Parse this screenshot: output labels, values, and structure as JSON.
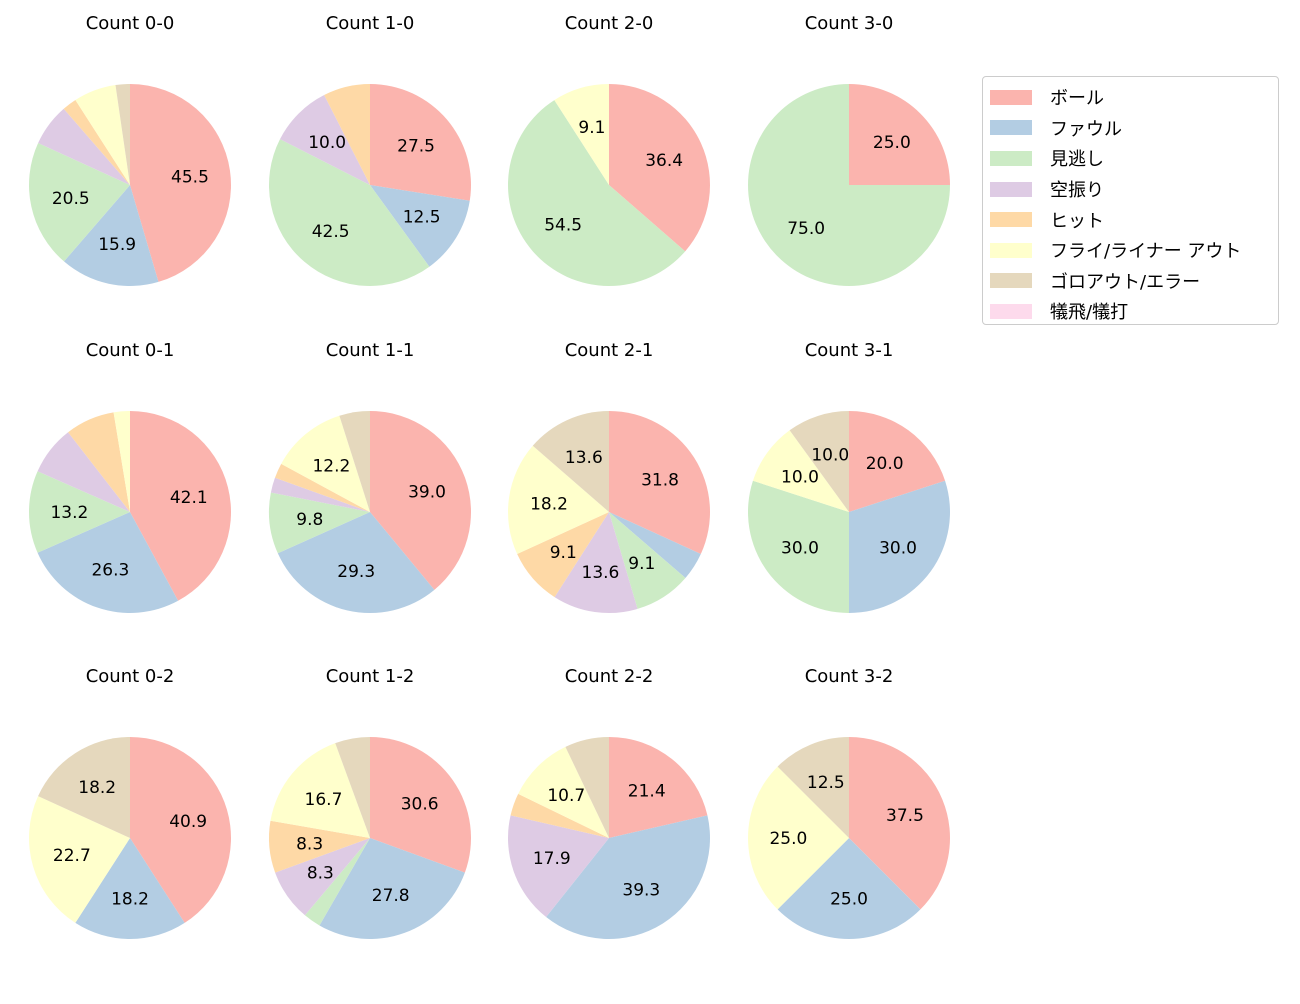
{
  "chart_data": {
    "type": "pie",
    "legend": {
      "position": "right",
      "entries": [
        "ボール",
        "ファウル",
        "見逃し",
        "空振り",
        "ヒット",
        "フライ/ライナー アウト",
        "ゴロアウト/エラー",
        "犠飛/犠打"
      ]
    },
    "colors": [
      "#fbb4ae",
      "#b3cde3",
      "#ccebc5",
      "#decbe4",
      "#fed9a6",
      "#ffffcc",
      "#e5d8bd",
      "#fddaec"
    ],
    "label_threshold": 8,
    "pies": [
      {
        "title": "Count 0-0",
        "values": [
          45.5,
          15.9,
          20.5,
          6.8,
          2.3,
          6.8,
          2.3,
          0
        ]
      },
      {
        "title": "Count 1-0",
        "values": [
          27.5,
          12.5,
          42.5,
          10.0,
          7.5,
          0,
          0,
          0
        ]
      },
      {
        "title": "Count 2-0",
        "values": [
          36.4,
          0,
          54.5,
          0,
          0,
          9.1,
          0,
          0
        ]
      },
      {
        "title": "Count 3-0",
        "values": [
          25.0,
          0,
          75.0,
          0,
          0,
          0,
          0,
          0
        ]
      },
      {
        "title": "Count 0-1",
        "values": [
          42.1,
          26.3,
          13.2,
          7.9,
          7.9,
          2.6,
          0,
          0
        ]
      },
      {
        "title": "Count 1-1",
        "values": [
          39.0,
          29.3,
          9.8,
          2.4,
          2.4,
          12.2,
          4.9,
          0
        ]
      },
      {
        "title": "Count 2-1",
        "values": [
          31.8,
          4.5,
          9.1,
          13.6,
          9.1,
          18.2,
          13.6,
          0
        ]
      },
      {
        "title": "Count 3-1",
        "values": [
          20.0,
          30.0,
          30.0,
          0,
          0,
          10.0,
          10.0,
          0
        ]
      },
      {
        "title": "Count 0-2",
        "values": [
          40.9,
          18.2,
          0,
          0,
          0,
          22.7,
          18.2,
          0
        ]
      },
      {
        "title": "Count 1-2",
        "values": [
          30.6,
          27.8,
          2.8,
          8.3,
          8.3,
          16.7,
          5.6,
          0
        ]
      },
      {
        "title": "Count 2-2",
        "values": [
          21.4,
          39.3,
          0,
          17.9,
          3.6,
          10.7,
          7.1,
          0
        ]
      },
      {
        "title": "Count 3-2",
        "values": [
          37.5,
          25.0,
          0,
          0,
          0,
          25.0,
          12.5,
          0
        ]
      }
    ]
  }
}
